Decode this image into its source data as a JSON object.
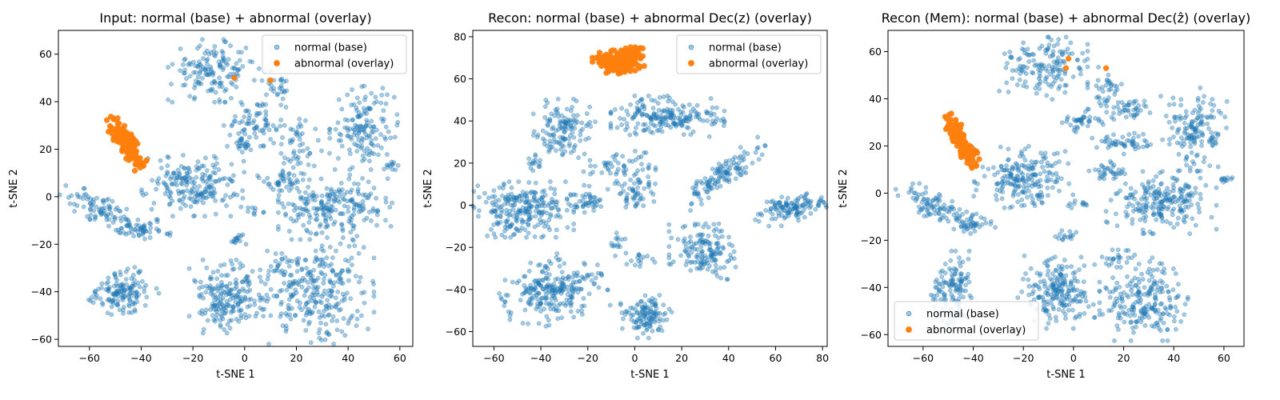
{
  "figure": {
    "colors": {
      "normal": "#1f77b4",
      "abnormal": "#ff7f0e"
    }
  },
  "chart_data": [
    {
      "type": "scatter",
      "title": "Input: normal (base) + abnormal (overlay)",
      "xlabel": "t-SNE 1",
      "ylabel": "t-SNE 2",
      "xlim": [
        -72,
        65
      ],
      "ylim": [
        -63,
        70
      ],
      "xticks": [
        -60,
        -40,
        -20,
        0,
        20,
        40,
        60
      ],
      "yticks": [
        -60,
        -40,
        -20,
        0,
        20,
        40,
        60
      ],
      "grid": false,
      "legend_position": "upper right",
      "series": [
        {
          "name": "normal (base)",
          "color": "#1f77b4",
          "alpha": 0.4,
          "clusters": [
            {
              "cx": -12,
              "cy": 53,
              "sx": 8,
              "sy": 6,
              "n": 150,
              "angle": 0
            },
            {
              "cx": 3,
              "cy": 30,
              "sx": 5,
              "sy": 4,
              "n": 70,
              "angle": 0
            },
            {
              "cx": 0,
              "cy": 22,
              "sx": 2,
              "sy": 2,
              "n": 20,
              "angle": 0
            },
            {
              "cx": 12,
              "cy": 44,
              "sx": 3,
              "sy": 4,
              "n": 30,
              "angle": 0
            },
            {
              "cx": 21,
              "cy": 22,
              "sx": 4,
              "sy": 6,
              "n": 50,
              "angle": 0
            },
            {
              "cx": 46,
              "cy": 29,
              "sx": 6,
              "sy": 8,
              "n": 150,
              "angle": 0
            },
            {
              "cx": -20,
              "cy": 5,
              "sx": 9,
              "sy": 6,
              "n": 200,
              "angle": 0
            },
            {
              "cx": 16,
              "cy": 7,
              "sx": 5,
              "sy": 2,
              "n": 40,
              "angle": 0
            },
            {
              "cx": 35,
              "cy": -4,
              "sx": 10,
              "sy": 6,
              "n": 220,
              "angle": 0
            },
            {
              "cx": -55,
              "cy": -6,
              "sx": 8,
              "sy": 2.5,
              "n": 90,
              "angle": -30
            },
            {
              "cx": -39,
              "cy": -14,
              "sx": 5,
              "sy": 2,
              "n": 50,
              "angle": 0
            },
            {
              "cx": 57,
              "cy": 12,
              "sx": 1.5,
              "sy": 2,
              "n": 12,
              "angle": 0
            },
            {
              "cx": 3,
              "cy": -6,
              "sx": 2,
              "sy": 1,
              "n": 10,
              "angle": 0
            },
            {
              "cx": -3,
              "cy": -18,
              "sx": 2,
              "sy": 1.5,
              "n": 15,
              "angle": 0
            },
            {
              "cx": -48,
              "cy": -40,
              "sx": 6,
              "sy": 4.5,
              "n": 140,
              "angle": 25
            },
            {
              "cx": -6,
              "cy": -42,
              "sx": 7,
              "sy": 7,
              "n": 200,
              "angle": 0
            },
            {
              "cx": 28,
              "cy": -40,
              "sx": 10,
              "sy": 10,
              "n": 280,
              "angle": 0
            },
            {
              "cx": 14,
              "cy": -30,
              "sx": 3,
              "sy": 3,
              "n": 20,
              "angle": 0
            }
          ]
        },
        {
          "name": "abnormal (overlay)",
          "color": "#ff7f0e",
          "alpha": 0.95,
          "clusters": [
            {
              "cx": -46,
              "cy": 23,
              "sx": 5.5,
              "sy": 1.6,
              "n": 150,
              "angle": -58
            }
          ],
          "points": [
            [
              -4,
              50
            ],
            [
              10,
              49
            ]
          ]
        }
      ]
    },
    {
      "type": "scatter",
      "title": "Recon: normal (base) + abnormal Dec(z) (overlay)",
      "xlabel": "t-SNE 1",
      "ylabel": "t-SNE 2",
      "xlim": [
        -69,
        82
      ],
      "ylim": [
        -67,
        83
      ],
      "xticks": [
        -60,
        -40,
        -20,
        0,
        20,
        40,
        60,
        80
      ],
      "yticks": [
        -60,
        -40,
        -20,
        0,
        20,
        40,
        60,
        80
      ],
      "grid": false,
      "legend_position": "upper right",
      "series": [
        {
          "name": "normal (base)",
          "color": "#1f77b4",
          "alpha": 0.4,
          "clusters": [
            {
              "cx": -30,
              "cy": 35,
              "sx": 6,
              "sy": 7,
              "n": 130,
              "angle": 0
            },
            {
              "cx": -42,
              "cy": 20,
              "sx": 2,
              "sy": 2,
              "n": 15,
              "angle": 0
            },
            {
              "cx": 14,
              "cy": 42,
              "sx": 11,
              "sy": 4.5,
              "n": 200,
              "angle": 0
            },
            {
              "cx": -6,
              "cy": 15,
              "sx": 8,
              "sy": 5,
              "n": 70,
              "angle": 0
            },
            {
              "cx": 0,
              "cy": 5,
              "sx": 4,
              "sy": 4,
              "n": 40,
              "angle": 0
            },
            {
              "cx": 38,
              "cy": 15,
              "sx": 10,
              "sy": 2.5,
              "n": 120,
              "angle": 38
            },
            {
              "cx": -48,
              "cy": -2,
              "sx": 10,
              "sy": 6,
              "n": 250,
              "angle": 0
            },
            {
              "cx": -20,
              "cy": 1,
              "sx": 4,
              "sy": 2,
              "n": 40,
              "angle": 0
            },
            {
              "cx": 66,
              "cy": -2,
              "sx": 7,
              "sy": 3,
              "n": 120,
              "angle": 15
            },
            {
              "cx": 30,
              "cy": -22,
              "sx": 7,
              "sy": 6,
              "n": 150,
              "angle": 0
            },
            {
              "cx": -35,
              "cy": -40,
              "sx": 10,
              "sy": 7,
              "n": 250,
              "angle": 20
            },
            {
              "cx": 5,
              "cy": -52,
              "sx": 5,
              "sy": 5,
              "n": 120,
              "angle": 0
            },
            {
              "cx": 2,
              "cy": -26,
              "sx": 3,
              "sy": 1.5,
              "n": 15,
              "angle": 0
            },
            {
              "cx": -8,
              "cy": -18,
              "sx": 2,
              "sy": 3,
              "n": 15,
              "angle": 0
            }
          ]
        },
        {
          "name": "abnormal (overlay)",
          "color": "#ff7f0e",
          "alpha": 0.95,
          "clusters": [
            {
              "cx": -7,
              "cy": 68,
              "sx": 5,
              "sy": 2.5,
              "n": 180,
              "angle": 0
            },
            {
              "cx": -1,
              "cy": 72,
              "sx": 2,
              "sy": 2,
              "n": 40,
              "angle": 0
            }
          ],
          "points": []
        }
      ]
    },
    {
      "type": "scatter",
      "title": "Recon (Mem): normal (base) + abnormal Dec(ẑ) (overlay)",
      "xlabel": "t-SNE 1",
      "ylabel": "t-SNE 2",
      "xlim": [
        -74,
        68
      ],
      "ylim": [
        -65,
        69
      ],
      "xticks": [
        -60,
        -40,
        -20,
        0,
        20,
        40,
        60
      ],
      "yticks": [
        -60,
        -40,
        -20,
        0,
        20,
        40,
        60
      ],
      "grid": false,
      "legend_position": "lower left",
      "series": [
        {
          "name": "normal (base)",
          "color": "#1f77b4",
          "alpha": 0.4,
          "clusters": [
            {
              "cx": -12,
              "cy": 53,
              "sx": 8,
              "sy": 6,
              "n": 150,
              "angle": 0
            },
            {
              "cx": 3,
              "cy": 30,
              "sx": 4,
              "sy": 3,
              "n": 40,
              "angle": 0
            },
            {
              "cx": 13,
              "cy": 45,
              "sx": 3,
              "sy": 4,
              "n": 35,
              "angle": 0
            },
            {
              "cx": 22,
              "cy": 35,
              "sx": 4,
              "sy": 3,
              "n": 40,
              "angle": 0
            },
            {
              "cx": 20,
              "cy": 21,
              "sx": 6,
              "sy": 2,
              "n": 50,
              "angle": 0
            },
            {
              "cx": 48,
              "cy": 27,
              "sx": 6,
              "sy": 8,
              "n": 150,
              "angle": 0
            },
            {
              "cx": -20,
              "cy": 7,
              "sx": 9,
              "sy": 6,
              "n": 200,
              "angle": 0
            },
            {
              "cx": 15,
              "cy": 9,
              "sx": 4,
              "sy": 2,
              "n": 35,
              "angle": 0
            },
            {
              "cx": 35,
              "cy": -4,
              "sx": 10,
              "sy": 6,
              "n": 220,
              "angle": 0
            },
            {
              "cx": -55,
              "cy": -6,
              "sx": 8,
              "sy": 2.5,
              "n": 90,
              "angle": -30
            },
            {
              "cx": -40,
              "cy": -13,
              "sx": 4,
              "sy": 2,
              "n": 40,
              "angle": 0
            },
            {
              "cx": 60,
              "cy": 7,
              "sx": 1.5,
              "sy": 2,
              "n": 12,
              "angle": 0
            },
            {
              "cx": 3,
              "cy": -5,
              "sx": 2,
              "sy": 1,
              "n": 10,
              "angle": 0
            },
            {
              "cx": -3,
              "cy": -18,
              "sx": 2,
              "sy": 1.5,
              "n": 15,
              "angle": 0
            },
            {
              "cx": -48,
              "cy": -40,
              "sx": 4,
              "sy": 7,
              "n": 120,
              "angle": 0
            },
            {
              "cx": -7,
              "cy": -42,
              "sx": 7,
              "sy": 7,
              "n": 200,
              "angle": 0
            },
            {
              "cx": 28,
              "cy": -45,
              "sx": 8,
              "sy": 8,
              "n": 220,
              "angle": 0
            },
            {
              "cx": 18,
              "cy": -27,
              "sx": 3,
              "sy": 2,
              "n": 20,
              "angle": 0
            }
          ]
        },
        {
          "name": "abnormal (overlay)",
          "color": "#ff7f0e",
          "alpha": 0.95,
          "clusters": [
            {
              "cx": -45,
              "cy": 22,
              "sx": 5.5,
              "sy": 1.6,
              "n": 130,
              "angle": -62
            }
          ],
          "points": [
            [
              -2,
              57
            ],
            [
              -3,
              53
            ],
            [
              13,
              53
            ]
          ]
        }
      ]
    }
  ]
}
